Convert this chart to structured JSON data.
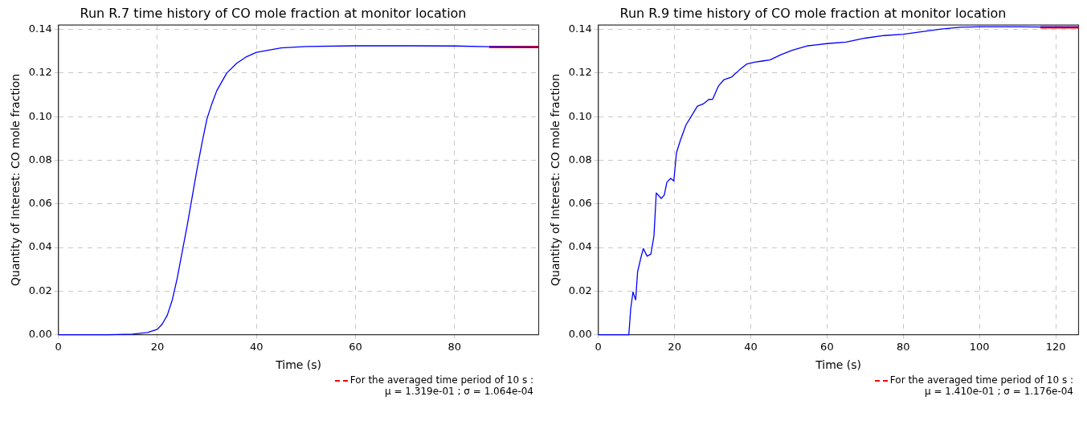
{
  "chart_data": [
    {
      "type": "line",
      "title": "Run R.7 time history of CO mole fraction at monitor location",
      "xlabel": "Time (s)",
      "ylabel": "Quantity of Interest: CO mole fraction",
      "xlim": [
        0,
        97
      ],
      "xticks": [
        0,
        20,
        40,
        60,
        80
      ],
      "ylim": [
        0,
        0.142
      ],
      "yticks": [
        {
          "value": 0,
          "label": "0.00"
        },
        {
          "value": 0.02,
          "label": "0.02"
        },
        {
          "value": 0.04,
          "label": "0.04"
        },
        {
          "value": 0.06,
          "label": "0.06"
        },
        {
          "value": 0.08,
          "label": "0.08"
        },
        {
          "value": 0.1,
          "label": "0.10"
        },
        {
          "value": 0.12,
          "label": "0.12"
        },
        {
          "value": 0.14,
          "label": "0.14"
        }
      ],
      "grid": true,
      "legend": "bottom right",
      "series": [
        {
          "color": "#0000ff",
          "x": [
            0,
            10,
            15,
            18,
            20,
            21,
            22,
            23,
            24,
            25,
            26,
            27,
            28,
            29,
            30,
            31,
            32,
            34,
            36,
            38,
            40,
            45,
            50,
            60,
            70,
            80,
            87,
            97
          ],
          "values": [
            0,
            0,
            0.0003,
            0.001,
            0.0025,
            0.005,
            0.009,
            0.016,
            0.026,
            0.038,
            0.05,
            0.063,
            0.076,
            0.088,
            0.099,
            0.106,
            0.112,
            0.12,
            0.1245,
            0.1275,
            0.1295,
            0.1315,
            0.1322,
            0.1325,
            0.1325,
            0.1324,
            0.1321,
            0.1318
          ]
        },
        {
          "name": "For the averaged time period of 10 s :\nμ =  1.319e-01 ; σ =  1.064e-04",
          "color": "#ff0000",
          "x": [
            87,
            97
          ],
          "values": [
            0.1319,
            0.1319
          ]
        }
      ]
    },
    {
      "type": "line",
      "title": "Run R.9 time history of CO mole fraction at monitor location",
      "xlabel": "Time (s)",
      "ylabel": "Quantity of Interest: CO mole fraction",
      "xlim": [
        0,
        126
      ],
      "xticks": [
        0,
        20,
        40,
        60,
        80,
        100,
        120
      ],
      "ylim": [
        0,
        0.142
      ],
      "yticks": [
        {
          "value": 0,
          "label": "0.00"
        },
        {
          "value": 0.02,
          "label": "0.02"
        },
        {
          "value": 0.04,
          "label": "0.04"
        },
        {
          "value": 0.06,
          "label": "0.06"
        },
        {
          "value": 0.08,
          "label": "0.08"
        },
        {
          "value": 0.1,
          "label": "0.10"
        },
        {
          "value": 0.12,
          "label": "0.12"
        },
        {
          "value": 0.14,
          "label": "0.14"
        }
      ],
      "grid": true,
      "legend": "bottom right",
      "series": [
        {
          "color": "#0000ff",
          "x": [
            0,
            8,
            8.5,
            9.1,
            9.8,
            10.3,
            11.2,
            11.8,
            12.8,
            13.8,
            14.6,
            15.2,
            16.5,
            17.3,
            18,
            19,
            19.8,
            20.5,
            21.5,
            23,
            24.5,
            26,
            27.5,
            29,
            30,
            31.5,
            33,
            35,
            37,
            39,
            41,
            43,
            45,
            48,
            51,
            55,
            60,
            65,
            70,
            75,
            80,
            85,
            90,
            95,
            100,
            110,
            116,
            126
          ],
          "values": [
            0,
            0,
            0.012,
            0.0196,
            0.016,
            0.0288,
            0.0356,
            0.0395,
            0.036,
            0.037,
            0.0454,
            0.065,
            0.0625,
            0.064,
            0.07,
            0.0717,
            0.0705,
            0.0834,
            0.089,
            0.0962,
            0.1005,
            0.1048,
            0.1058,
            0.1079,
            0.108,
            0.114,
            0.117,
            0.1182,
            0.1214,
            0.1242,
            0.125,
            0.1255,
            0.126,
            0.1285,
            0.1305,
            0.1325,
            0.1335,
            0.1342,
            0.136,
            0.1372,
            0.1378,
            0.139,
            0.1402,
            0.141,
            0.1412,
            0.1412,
            0.1411,
            0.141
          ]
        },
        {
          "name": "For the averaged time period of 10 s :\nμ =  1.410e-01 ; σ =  1.176e-04",
          "color": "#ff0000",
          "x": [
            116,
            126
          ],
          "values": [
            0.141,
            0.141
          ]
        }
      ]
    }
  ]
}
